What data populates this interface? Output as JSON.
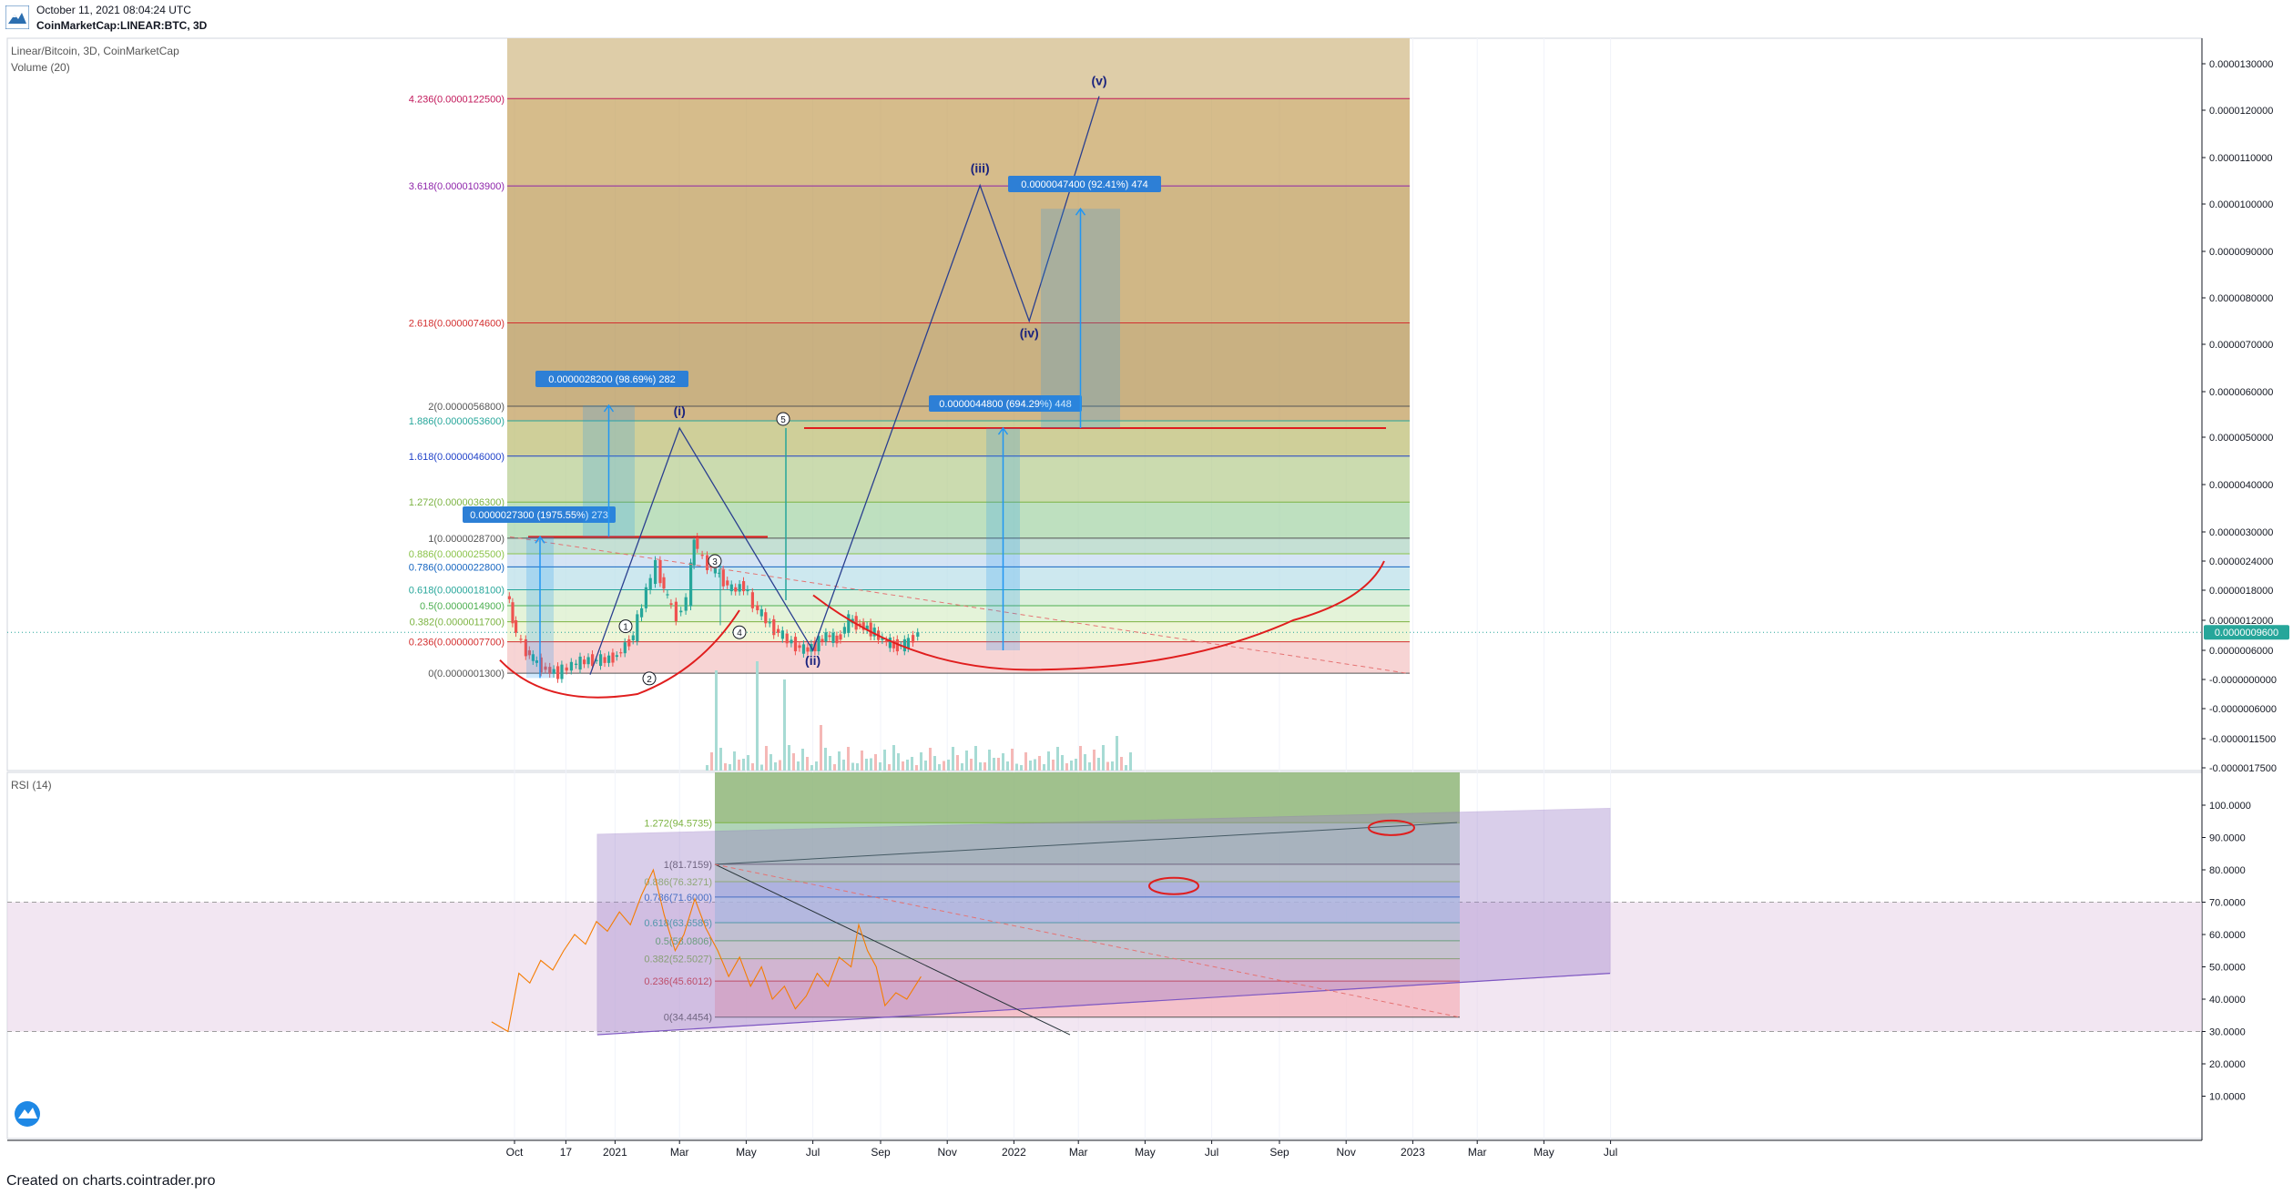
{
  "header": {
    "datetime": "October 11, 2021 08:04:24 UTC",
    "symbol_line": "CoinMarketCap:LINEAR:BTC, 3D"
  },
  "footer": {
    "created_on": "Created on charts.cointrader.pro"
  },
  "colors": {
    "bullish": "#26a69a",
    "bearish": "#ef5350",
    "wave_line": "#2a3f8f",
    "measure_blue": "#2196f3",
    "trend_red": "#e01e1e",
    "rsi_line": "#f57c00",
    "rsi_band": "#e9d5ea",
    "channel_purple": "#9c7fc9"
  },
  "chart_data": [
    {
      "type": "line",
      "title": "Linear/Bitcoin, 3D, CoinMarketCap",
      "subtitle": "Volume (20)",
      "x_tick_labels": [
        "Oct",
        "17",
        "2021",
        "Mar",
        "May",
        "Jul",
        "Sep",
        "Nov",
        "2022",
        "Mar",
        "May",
        "Jul",
        "Sep",
        "Nov",
        "2023",
        "Mar",
        "May",
        "Jul"
      ],
      "y_tick_labels": [
        "0.0000130000",
        "0.0000120000",
        "0.0000110000",
        "0.0000100000",
        "0.0000090000",
        "0.0000080000",
        "0.0000070000",
        "0.0000060000",
        "0.0000050000",
        "0.0000040000",
        "0.0000030000",
        "0.0000024000",
        "0.0000018000",
        "0.0000012000",
        "0.0000006000",
        "-0.0000000000",
        "-0.0000006000",
        "-0.0000011500",
        "-0.0000017500"
      ],
      "last_price_label": "0.0000009600",
      "y_scale": "log-like",
      "ylim": [
        -1.75e-06,
        1.3e-05
      ],
      "fib_levels": [
        {
          "label": "4.236(0.0000122500)",
          "value": 1.225e-05,
          "color": "#c2185b"
        },
        {
          "label": "3.618(0.0000103900)",
          "value": 1.039e-05,
          "color": "#8e24aa"
        },
        {
          "label": "2.618(0.0000074600)",
          "value": 7.46e-06,
          "color": "#d32f2f"
        },
        {
          "label": "2(0.0000056800)",
          "value": 5.68e-06,
          "color": "#555555"
        },
        {
          "label": "1.886(0.0000053600)",
          "value": 5.36e-06,
          "color": "#26a69a"
        },
        {
          "label": "1.618(0.0000046000)",
          "value": 4.6e-06,
          "color": "#1e40c8"
        },
        {
          "label": "1.272(0.0000036300)",
          "value": 3.63e-06,
          "color": "#7cb342"
        },
        {
          "label": "1(0.0000028700)",
          "value": 2.87e-06,
          "color": "#555555"
        },
        {
          "label": "0.886(0.0000025500)",
          "value": 2.55e-06,
          "color": "#8bc34a"
        },
        {
          "label": "0.786(0.0000022800)",
          "value": 2.28e-06,
          "color": "#1565c0"
        },
        {
          "label": "0.618(0.0000018100)",
          "value": 1.81e-06,
          "color": "#26a69a"
        },
        {
          "label": "0.5(0.0000014900)",
          "value": 1.49e-06,
          "color": "#4caf50"
        },
        {
          "label": "0.382(0.0000011700)",
          "value": 1.17e-06,
          "color": "#7cb342"
        },
        {
          "label": "0.236(0.0000007700)",
          "value": 7.7e-07,
          "color": "#d32f2f"
        },
        {
          "label": "0(0.0000001300)",
          "value": 1.3e-07,
          "color": "#555555"
        }
      ],
      "measurements": [
        {
          "label": "0.0000027300 (1975.55%) 273"
        },
        {
          "label": "0.0000028200 (98.69%) 282"
        },
        {
          "label": "0.0000044800 (694.29%) 448"
        },
        {
          "label": "0.0000047400 (92.41%) 474"
        }
      ],
      "wave_labels": [
        "(i)",
        "(ii)",
        "(iii)",
        "(iv)",
        "(v)",
        "1",
        "2",
        "3",
        "4",
        "5"
      ],
      "price_series": [
        {
          "date": "2020-09-25",
          "close": 1.8e-06
        },
        {
          "date": "2020-10-01",
          "close": 1.2e-06
        },
        {
          "date": "2020-10-10",
          "close": 7e-07
        },
        {
          "date": "2020-10-20",
          "close": 4e-07
        },
        {
          "date": "2020-11-01",
          "close": 2e-07
        },
        {
          "date": "2020-11-12",
          "close": 1.3e-07
        },
        {
          "date": "2020-11-25",
          "close": 3e-07
        },
        {
          "date": "2020-12-10",
          "close": 4e-07
        },
        {
          "date": "2020-12-25",
          "close": 4e-07
        },
        {
          "date": "2021-01-05",
          "close": 5e-07
        },
        {
          "date": "2021-01-20",
          "close": 9e-07
        },
        {
          "date": "2021-02-01",
          "close": 1.8e-06
        },
        {
          "date": "2021-02-10",
          "close": 2.3e-06
        },
        {
          "date": "2021-02-20",
          "close": 1.6e-06
        },
        {
          "date": "2021-03-01",
          "close": 1.3e-06
        },
        {
          "date": "2021-03-10",
          "close": 1.6e-06
        },
        {
          "date": "2021-03-16",
          "close": 2.9e-06
        },
        {
          "date": "2021-03-25",
          "close": 2.4e-06
        },
        {
          "date": "2021-04-05",
          "close": 2.2e-06
        },
        {
          "date": "2021-04-20",
          "close": 1.8e-06
        },
        {
          "date": "2021-05-01",
          "close": 1.9e-06
        },
        {
          "date": "2021-05-10",
          "close": 1.5e-06
        },
        {
          "date": "2021-05-25",
          "close": 1.1e-06
        },
        {
          "date": "2021-06-10",
          "close": 8e-07
        },
        {
          "date": "2021-06-25",
          "close": 6e-07
        },
        {
          "date": "2021-07-05",
          "close": 7e-07
        },
        {
          "date": "2021-07-15",
          "close": 9e-07
        },
        {
          "date": "2021-07-25",
          "close": 8e-07
        },
        {
          "date": "2021-08-05",
          "close": 1.2e-06
        },
        {
          "date": "2021-08-15",
          "close": 1.1e-06
        },
        {
          "date": "2021-08-25",
          "close": 1e-06
        },
        {
          "date": "2021-09-05",
          "close": 8e-07
        },
        {
          "date": "2021-09-15",
          "close": 7e-07
        },
        {
          "date": "2021-09-25",
          "close": 7e-07
        },
        {
          "date": "2021-10-08",
          "close": 9.6e-07
        }
      ],
      "wave_projection": [
        {
          "label": "(i)",
          "date": "2021-03-01",
          "value": 5.2e-06
        },
        {
          "label": "(ii)",
          "date": "2021-07-01",
          "value": 6e-07
        },
        {
          "label": "(iii)",
          "date": "2021-12-01",
          "value": 1.04e-05
        },
        {
          "label": "(iv)",
          "date": "2022-01-15",
          "value": 7.5e-06
        },
        {
          "label": "(v)",
          "date": "2022-03-20",
          "value": 1.23e-05
        }
      ]
    },
    {
      "type": "line",
      "title": "RSI (14)",
      "y_tick_labels": [
        "100.0000",
        "90.0000",
        "80.0000",
        "70.0000",
        "60.0000",
        "50.0000",
        "40.0000",
        "30.0000",
        "20.0000",
        "10.0000"
      ],
      "ylim": [
        10,
        105
      ],
      "overbought": 70,
      "oversold": 30,
      "fib_levels": [
        {
          "label": "1.272(94.5735)",
          "value": 94.5735,
          "color": "#7cb342"
        },
        {
          "label": "1(81.7159)",
          "value": 81.7159,
          "color": "#555555"
        },
        {
          "label": "0.886(76.3271)",
          "value": 76.3271,
          "color": "#8bc34a"
        },
        {
          "label": "0.786(71.6000)",
          "value": 71.6,
          "color": "#1565c0"
        },
        {
          "label": "0.618(63.6586)",
          "value": 63.6586,
          "color": "#26a69a"
        },
        {
          "label": "0.5(58.0806)",
          "value": 58.0806,
          "color": "#4caf50"
        },
        {
          "label": "0.382(52.5027)",
          "value": 52.5027,
          "color": "#7cb342"
        },
        {
          "label": "0.236(45.6012)",
          "value": 45.6012,
          "color": "#d32f2f"
        },
        {
          "label": "0(34.4454)",
          "value": 34.4454,
          "color": "#555555"
        }
      ],
      "series": [
        {
          "values": [
            {
              "date": "2020-09-10",
              "rsi": 33
            },
            {
              "date": "2020-09-25",
              "rsi": 30
            },
            {
              "date": "2020-10-05",
              "rsi": 48
            },
            {
              "date": "2020-10-15",
              "rsi": 45
            },
            {
              "date": "2020-10-25",
              "rsi": 52
            },
            {
              "date": "2020-11-05",
              "rsi": 49
            },
            {
              "date": "2020-11-15",
              "rsi": 55
            },
            {
              "date": "2020-11-25",
              "rsi": 60
            },
            {
              "date": "2020-12-05",
              "rsi": 57
            },
            {
              "date": "2020-12-15",
              "rsi": 64
            },
            {
              "date": "2020-12-25",
              "rsi": 61
            },
            {
              "date": "2021-01-05",
              "rsi": 67
            },
            {
              "date": "2021-01-15",
              "rsi": 63
            },
            {
              "date": "2021-01-25",
              "rsi": 72
            },
            {
              "date": "2021-02-05",
              "rsi": 80
            },
            {
              "date": "2021-02-15",
              "rsi": 66
            },
            {
              "date": "2021-02-25",
              "rsi": 55
            },
            {
              "date": "2021-03-05",
              "rsi": 60
            },
            {
              "date": "2021-03-15",
              "rsi": 71
            },
            {
              "date": "2021-03-25",
              "rsi": 62
            },
            {
              "date": "2021-04-05",
              "rsi": 55
            },
            {
              "date": "2021-04-15",
              "rsi": 47
            },
            {
              "date": "2021-04-25",
              "rsi": 53
            },
            {
              "date": "2021-05-05",
              "rsi": 44
            },
            {
              "date": "2021-05-15",
              "rsi": 50
            },
            {
              "date": "2021-05-25",
              "rsi": 40
            },
            {
              "date": "2021-06-05",
              "rsi": 44
            },
            {
              "date": "2021-06-15",
              "rsi": 37
            },
            {
              "date": "2021-06-25",
              "rsi": 41
            },
            {
              "date": "2021-07-05",
              "rsi": 48
            },
            {
              "date": "2021-07-15",
              "rsi": 44
            },
            {
              "date": "2021-07-25",
              "rsi": 53
            },
            {
              "date": "2021-08-05",
              "rsi": 50
            },
            {
              "date": "2021-08-12",
              "rsi": 63
            },
            {
              "date": "2021-08-20",
              "rsi": 55
            },
            {
              "date": "2021-08-28",
              "rsi": 50
            },
            {
              "date": "2021-09-05",
              "rsi": 38
            },
            {
              "date": "2021-09-15",
              "rsi": 42
            },
            {
              "date": "2021-09-25",
              "rsi": 40
            },
            {
              "date": "2021-10-08",
              "rsi": 47
            }
          ]
        }
      ]
    }
  ]
}
